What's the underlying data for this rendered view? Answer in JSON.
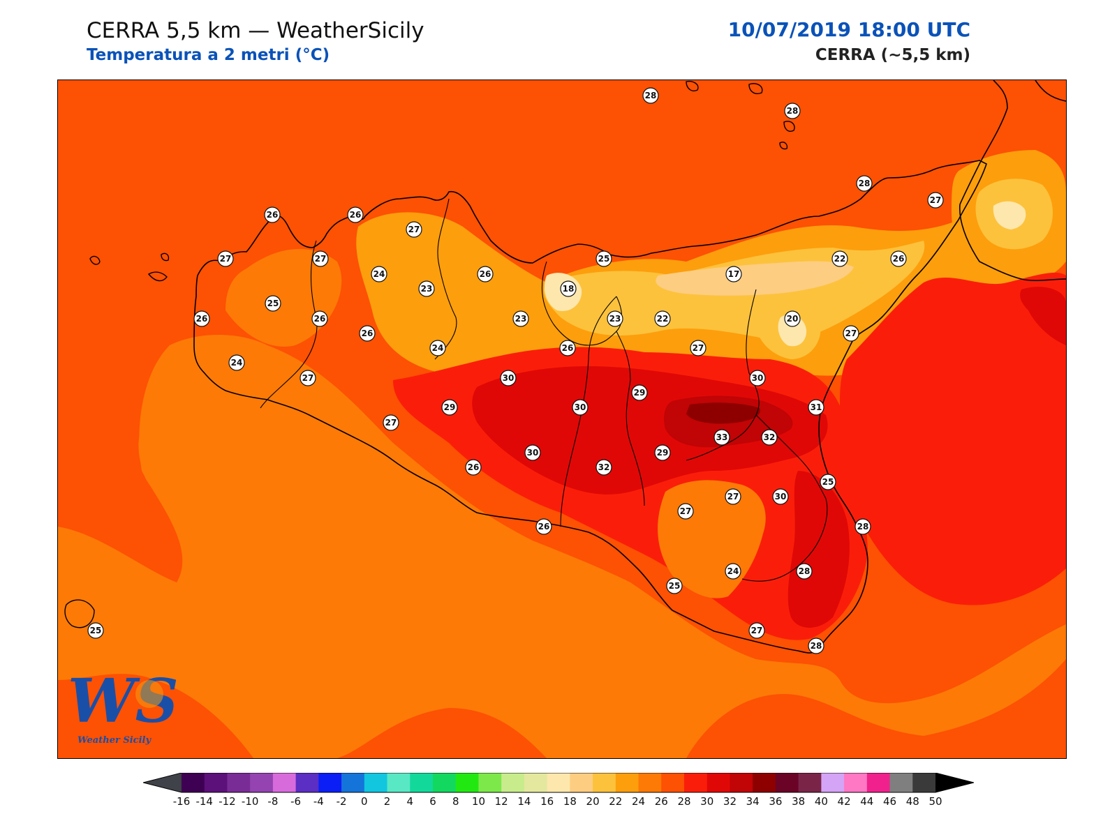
{
  "header": {
    "title": "CERRA 5,5 km — WeatherSicily",
    "subtitle": "Temperatura a 2 metri (°C)",
    "datetime": "10/07/2019 18:00 UTC",
    "model": "CERRA (~5,5 km)"
  },
  "logo": {
    "letters": "WS",
    "name": "Weather Sicily"
  },
  "map": {
    "temperature_labels": [
      "28",
      "28",
      "28",
      "27",
      "26",
      "26",
      "27",
      "27",
      "27",
      "24",
      "23",
      "26",
      "25",
      "24",
      "17",
      "22",
      "26",
      "18",
      "25",
      "26",
      "26",
      "23",
      "23",
      "22",
      "20",
      "27",
      "26",
      "24",
      "26",
      "27",
      "30",
      "27",
      "30",
      "29",
      "29",
      "30",
      "31",
      "33",
      "32",
      "27",
      "30",
      "29",
      "32",
      "26",
      "27",
      "30",
      "25",
      "27",
      "26",
      "28",
      "24",
      "28",
      "25",
      "27",
      "28",
      "25"
    ]
  },
  "colorbar": {
    "tick_labels": [
      "-16",
      "-14",
      "-12",
      "-10",
      "-8",
      "-6",
      "-4",
      "-2",
      "0",
      "2",
      "4",
      "6",
      "8",
      "10",
      "12",
      "14",
      "16",
      "18",
      "20",
      "22",
      "24",
      "26",
      "28",
      "30",
      "32",
      "34",
      "36",
      "38",
      "40",
      "42",
      "44",
      "46",
      "48",
      "50"
    ],
    "colors": [
      "#3d0052",
      "#5c107a",
      "#7a2c96",
      "#9443b0",
      "#d86bdc",
      "#5b2ec4",
      "#0b1ef5",
      "#1474da",
      "#12c6e0",
      "#59e8c4",
      "#12d99a",
      "#12d860",
      "#22e812",
      "#7de84a",
      "#c8ec8c",
      "#e3e89e",
      "#fde7ad",
      "#fdcd82",
      "#fdc23c",
      "#fd9e0c",
      "#fd7a06",
      "#fd5103",
      "#fa1e0a",
      "#e00806",
      "#c10405",
      "#8e0000",
      "#6b0326",
      "#7a2548",
      "#d4a4f6",
      "#ff78c4",
      "#f0218c",
      "#7f7f7f",
      "#3a3a3a"
    ],
    "under_color": "#3f4248",
    "over_color": "#000000"
  }
}
